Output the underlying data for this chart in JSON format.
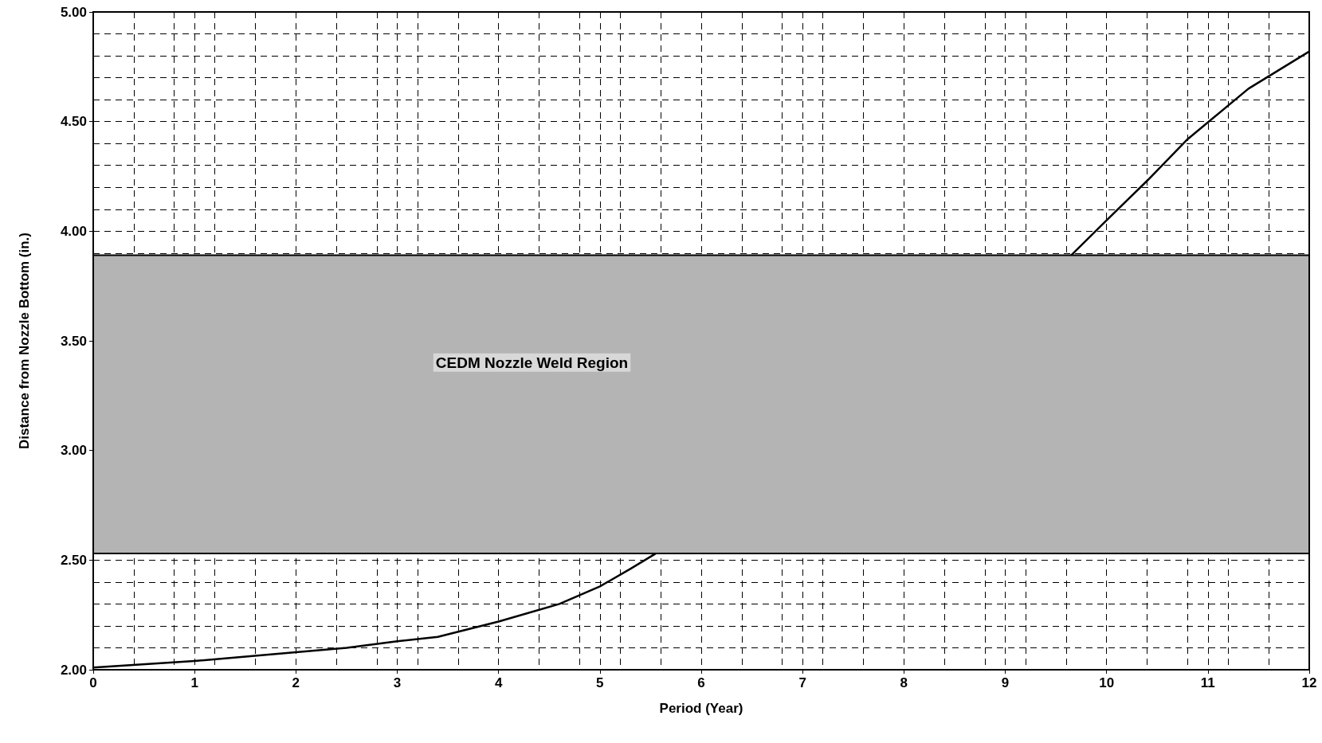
{
  "chart_data": {
    "type": "line",
    "xlabel": "Period (Year)",
    "ylabel": "Distance from Nozzle Bottom (in.)",
    "x": [
      0,
      1,
      2,
      2.5,
      3,
      3.4,
      4,
      4.6,
      5,
      5.3,
      5.55,
      7.5,
      9.65,
      10,
      10.4,
      10.8,
      11.4,
      12
    ],
    "series": [
      {
        "color": "#000000",
        "values": [
          2.01,
          2.04,
          2.08,
          2.1,
          2.13,
          2.15,
          2.22,
          2.3,
          2.38,
          2.46,
          2.53,
          null,
          3.89,
          4.05,
          4.23,
          4.42,
          4.65,
          4.82
        ]
      }
    ],
    "xlim": [
      0,
      12
    ],
    "xticks": [
      0,
      1,
      2,
      3,
      4,
      5,
      6,
      7,
      8,
      9,
      10,
      11,
      12
    ],
    "ylim": [
      2,
      5
    ],
    "yticks": [
      {
        "value": 2,
        "label": "2.00"
      },
      {
        "value": 2.5,
        "label": "2.50"
      },
      {
        "value": 3,
        "label": "3.00"
      },
      {
        "value": 3.5,
        "label": "3.50"
      },
      {
        "value": 4,
        "label": "4.00"
      },
      {
        "value": 4.5,
        "label": "4.50"
      },
      {
        "value": 5,
        "label": "5.00"
      }
    ],
    "bands": [
      {
        "axis": "y",
        "from": 2.53,
        "to": 3.89,
        "label": "CEDM Nozzle Weld Region",
        "color": "#b4b4b4"
      }
    ],
    "grid": true,
    "marker": "none",
    "line_style": "solid"
  }
}
